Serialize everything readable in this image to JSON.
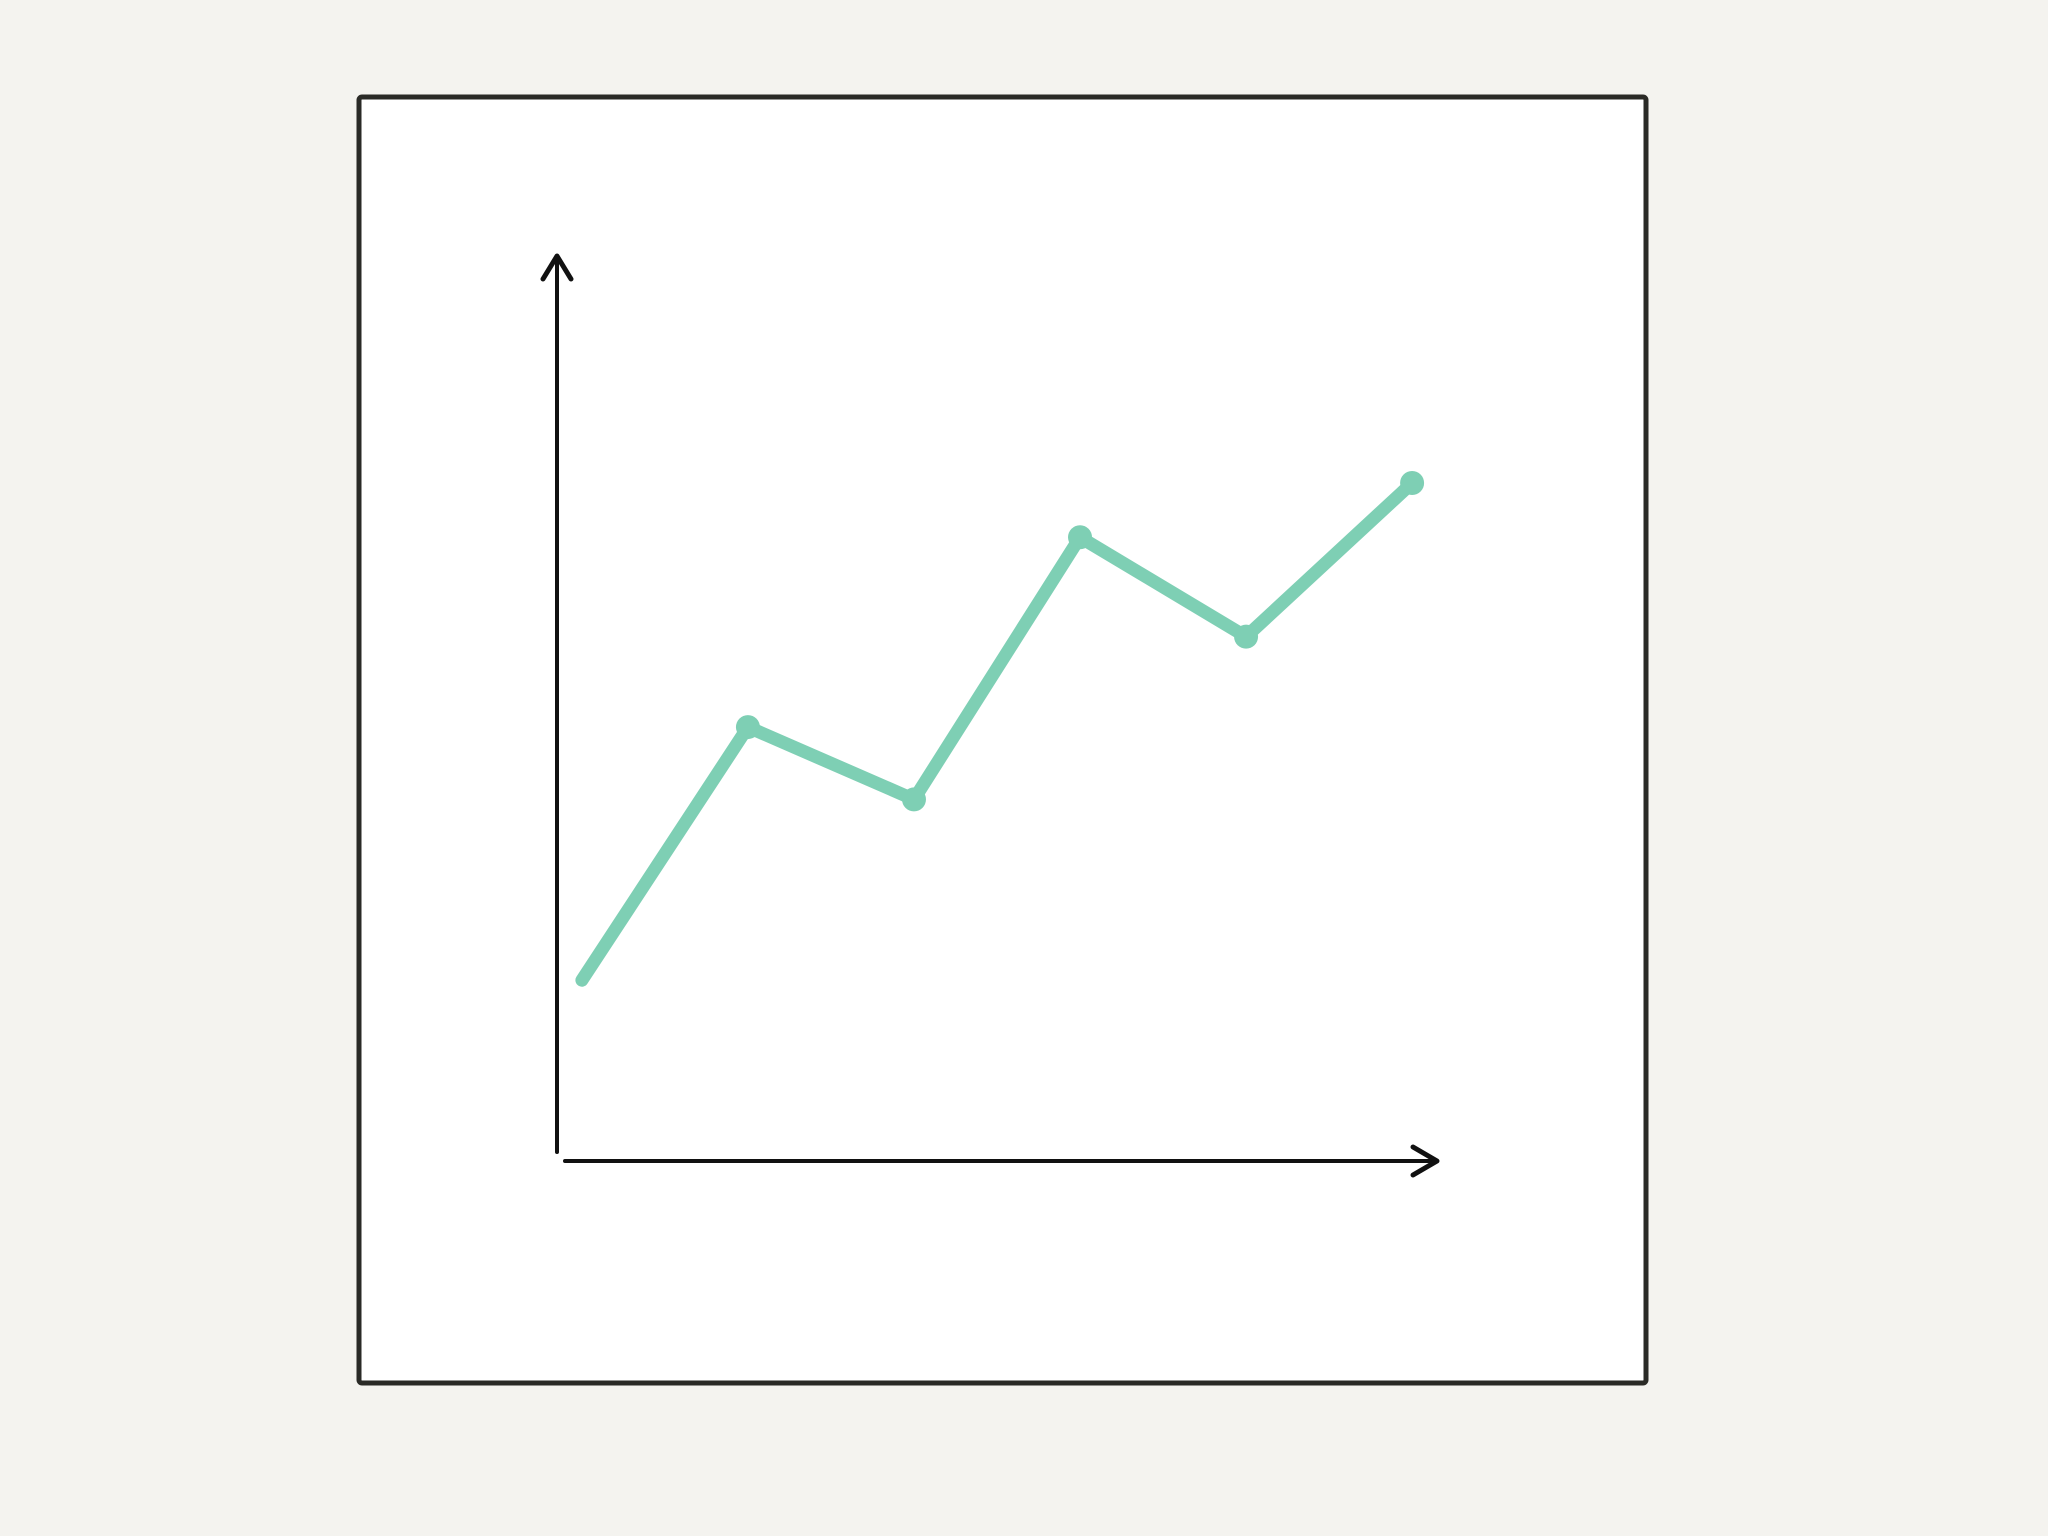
{
  "chart_data": {
    "type": "line",
    "title": "",
    "xlabel": "",
    "ylabel": "",
    "x": [
      0,
      1,
      2,
      3,
      4,
      5
    ],
    "xlim": [
      -0.15,
      5.15
    ],
    "ylim": [
      0,
      100
    ],
    "series": [
      {
        "values": [
          20,
          48,
          40,
          69,
          58,
          75
        ]
      }
    ],
    "grid": false,
    "colors": {
      "line": "#7ecfb4",
      "axis": "#111111",
      "frame": "#2a2a26",
      "panel": "#ffffff",
      "background": "#f4f3ef"
    }
  }
}
